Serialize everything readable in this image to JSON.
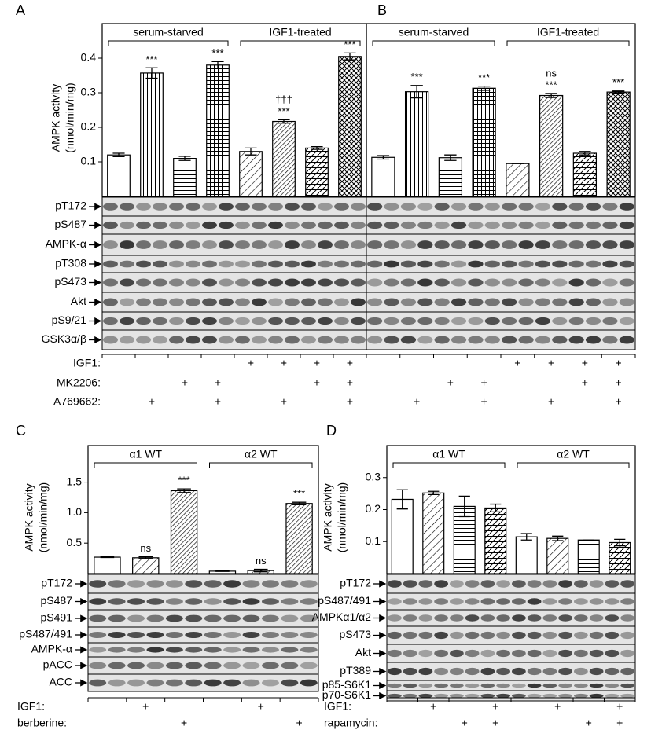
{
  "chart_data": [
    {
      "type": "bar",
      "panel": "A",
      "ylabel": [
        "AMPK activity",
        "(nmol/min/mg)"
      ],
      "groups": [
        "serum-starved",
        "IGF1-treated"
      ],
      "values": [
        0.12,
        0.357,
        0.11,
        0.38,
        0.13,
        0.217,
        0.14,
        0.405
      ],
      "errors": [
        0.005,
        0.015,
        0.006,
        0.01,
        0.01,
        0.005,
        0.004,
        0.01
      ],
      "patterns": [
        "open",
        "vertical",
        "horizontal",
        "grid",
        "diagonal",
        "diagonal-dense",
        "diagonal-horizontal",
        "crosshatch"
      ],
      "annotations": [
        [],
        [
          "***"
        ],
        [],
        [
          "***"
        ],
        [],
        [
          "†††",
          "***"
        ],
        [],
        [
          "***"
        ]
      ],
      "ylim": [
        0,
        0.5
      ],
      "yticks": [
        0.1,
        0.2,
        0.3,
        0.4
      ],
      "blot_labels": [
        "pT172",
        "pS487",
        "AMPK-α",
        "pT308",
        "pS473",
        "Akt",
        "pS9/21",
        "GSK3α/β"
      ],
      "treatments": [
        {
          "label": "IGF1:",
          "marks": [
            null,
            null,
            null,
            null,
            "+",
            "+",
            "+",
            "+"
          ]
        },
        {
          "label": "MK2206:",
          "marks": [
            null,
            null,
            "+",
            "+",
            null,
            null,
            "+",
            "+"
          ]
        },
        {
          "label": "A769662:",
          "marks": [
            null,
            "+",
            null,
            "+",
            null,
            "+",
            null,
            "+"
          ]
        }
      ]
    },
    {
      "type": "bar",
      "panel": "B",
      "groups": [
        "serum-starved",
        "IGF1-treated"
      ],
      "values": [
        0.113,
        0.303,
        0.112,
        0.313,
        0.095,
        0.292,
        0.125,
        0.302
      ],
      "errors": [
        0.005,
        0.018,
        0.008,
        0.006,
        0,
        0.006,
        0.005,
        0.003
      ],
      "patterns": [
        "open",
        "vertical",
        "horizontal",
        "grid",
        "diagonal",
        "diagonal-dense",
        "diagonal-horizontal",
        "crosshatch"
      ],
      "annotations": [
        [],
        [
          "***"
        ],
        [],
        [
          "***"
        ],
        [],
        [
          "ns",
          "***"
        ],
        [],
        [
          "***"
        ]
      ],
      "ylim": [
        0,
        0.5
      ],
      "treatments": [
        {
          "marks": [
            null,
            null,
            null,
            null,
            "+",
            "+",
            "+",
            "+"
          ]
        },
        {
          "marks": [
            null,
            null,
            "+",
            "+",
            null,
            null,
            "+",
            "+"
          ]
        },
        {
          "marks": [
            null,
            "+",
            null,
            "+",
            null,
            "+",
            null,
            "+"
          ]
        }
      ]
    },
    {
      "type": "bar",
      "panel": "C",
      "ylabel": [
        "AMPK activity",
        "(nmol/min/mg)"
      ],
      "groups": [
        "α1 WT",
        "α2 WT"
      ],
      "values": [
        0.27,
        0.26,
        1.36,
        0.04,
        0.05,
        1.15
      ],
      "errors": [
        0.005,
        0.015,
        0.03,
        0.005,
        0.02,
        0.02
      ],
      "patterns": [
        "open",
        "diagonal",
        "diagonal-dense",
        "open",
        "diagonal",
        "diagonal-dense"
      ],
      "annotations": [
        [],
        [
          "ns"
        ],
        [
          "***"
        ],
        [],
        [
          "ns"
        ],
        [
          "***"
        ]
      ],
      "ylim": [
        0,
        2.1
      ],
      "yticks": [
        0.5,
        {
          "value": 1,
          "label": "1.0"
        },
        1.5
      ],
      "blot_labels": [
        "pT172",
        "pS487",
        "pS491",
        "pS487/491",
        "AMPK-α",
        "pACC",
        "ACC"
      ],
      "treatments": [
        {
          "label": "IGF1:",
          "marks": [
            null,
            "+",
            null,
            null,
            "+",
            null
          ]
        },
        {
          "label": "berberine:",
          "marks": [
            null,
            null,
            "+",
            null,
            null,
            "+"
          ]
        }
      ]
    },
    {
      "type": "bar",
      "panel": "D",
      "ylabel": [
        "AMPK activity",
        "(nmol/min/mg)"
      ],
      "groups": [
        "α1 WT",
        "α2 WT"
      ],
      "values": [
        0.232,
        0.252,
        0.21,
        0.205,
        0.115,
        0.11,
        0.105,
        0.097
      ],
      "errors": [
        0.03,
        0.005,
        0.032,
        0.012,
        0.01,
        0.007,
        0,
        0.01
      ],
      "patterns": [
        "open",
        "diagonal",
        "horizontal",
        "diagonal-horizontal",
        "open",
        "diagonal",
        "horizontal",
        "diagonal-horizontal"
      ],
      "ylim": [
        0,
        0.4
      ],
      "yticks": [
        0.1,
        0.2,
        0.3
      ],
      "blot_labels": [
        "pT172",
        "pS487/491",
        "AMPKα1/α2",
        "pS473",
        "Akt",
        "pT389",
        "p85-S6K1",
        "p70-S6K1"
      ],
      "treatments": [
        {
          "label": "IGF1:",
          "marks": [
            null,
            "+",
            null,
            "+",
            null,
            "+",
            null,
            "+"
          ]
        },
        {
          "label": "rapamycin:",
          "marks": [
            null,
            null,
            "+",
            "+",
            null,
            null,
            "+",
            "+"
          ]
        }
      ]
    }
  ]
}
